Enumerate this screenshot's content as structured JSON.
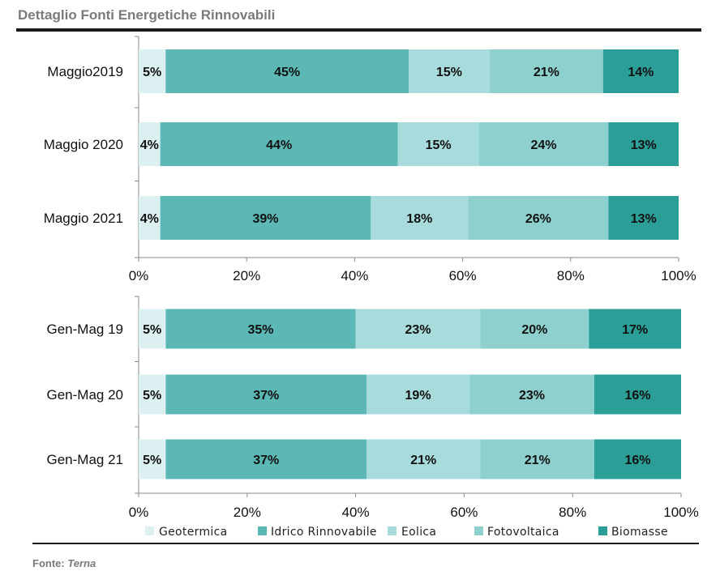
{
  "header": {
    "title": "Dettaglio Fonti Energetiche Rinnovabili"
  },
  "footer": {
    "source_prefix": "Fonte:",
    "source_name": "Terna"
  },
  "chart_data": [
    {
      "type": "bar",
      "orientation": "horizontal",
      "stacked": "100%",
      "categories": [
        "Maggio2019",
        "Maggio 2020",
        "Maggio 2021"
      ],
      "series": [
        {
          "name": "Geotermica",
          "values": [
            5,
            4,
            4
          ],
          "labels": [
            "5%",
            "4%",
            "4%"
          ]
        },
        {
          "name": "Idrico Rinnovabile",
          "values": [
            45,
            44,
            39
          ],
          "labels": [
            "45%",
            "44%",
            "39%"
          ]
        },
        {
          "name": "Eolica",
          "values": [
            15,
            15,
            18
          ],
          "labels": [
            "15%",
            "15%",
            "18%"
          ]
        },
        {
          "name": "Fotovoltaica",
          "values": [
            21,
            24,
            26
          ],
          "labels": [
            "21%",
            "24%",
            "26%"
          ]
        },
        {
          "name": "Biomasse",
          "values": [
            14,
            13,
            13
          ],
          "labels": [
            "14%",
            "13%",
            "13%"
          ]
        }
      ],
      "xlim": [
        0,
        100
      ],
      "xticks": [
        "0%",
        "20%",
        "40%",
        "60%",
        "80%",
        "100%"
      ],
      "grid": false
    },
    {
      "type": "bar",
      "orientation": "horizontal",
      "stacked": "100%",
      "categories": [
        "Gen-Mag 19",
        "Gen-Mag 20",
        "Gen-Mag 21"
      ],
      "series": [
        {
          "name": "Geotermica",
          "values": [
            5,
            5,
            5
          ],
          "labels": [
            "5%",
            "5%",
            "5%"
          ]
        },
        {
          "name": "Idrico Rinnovabile",
          "values": [
            35,
            37,
            37
          ],
          "labels": [
            "35%",
            "37%",
            "37%"
          ]
        },
        {
          "name": "Eolica",
          "values": [
            23,
            19,
            21
          ],
          "labels": [
            "23%",
            "19%",
            "21%"
          ]
        },
        {
          "name": "Fotovoltaica",
          "values": [
            20,
            23,
            21
          ],
          "labels": [
            "20%",
            "23%",
            "21%"
          ]
        },
        {
          "name": "Biomasse",
          "values": [
            17,
            16,
            16
          ],
          "labels": [
            "17%",
            "16%",
            "16%"
          ]
        }
      ],
      "xlim": [
        0,
        100
      ],
      "xticks": [
        "0%",
        "20%",
        "40%",
        "60%",
        "80%",
        "100%"
      ],
      "grid": false
    }
  ],
  "legend": {
    "placement": "bottom",
    "items": [
      {
        "name": "Geotermica",
        "color": "#dcf0f2"
      },
      {
        "name": "Idrico Rinnovabile",
        "color": "#5bb8b4"
      },
      {
        "name": "Eolica",
        "color": "#a8dcdc"
      },
      {
        "name": "Fotovoltaica",
        "color": "#8ed0cd"
      },
      {
        "name": "Biomasse",
        "color": "#2b9e98"
      }
    ]
  }
}
